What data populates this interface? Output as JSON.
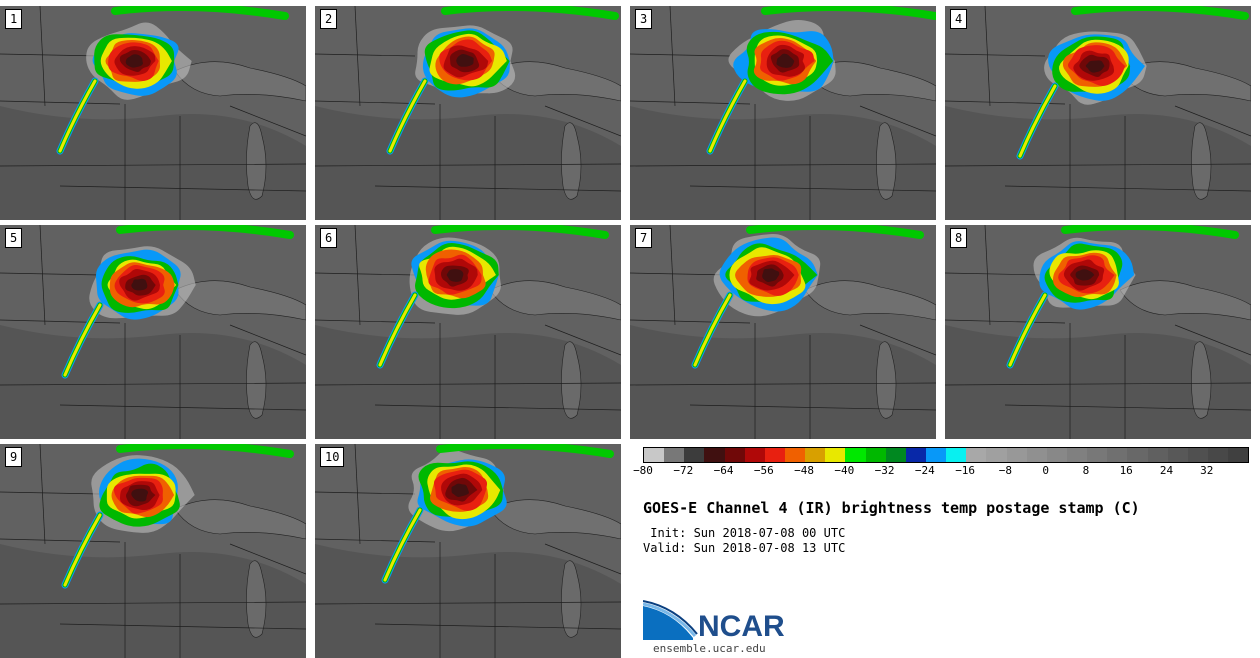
{
  "panels": [
    {
      "label": "1"
    },
    {
      "label": "2"
    },
    {
      "label": "3"
    },
    {
      "label": "4"
    },
    {
      "label": "5"
    },
    {
      "label": "6"
    },
    {
      "label": "7"
    },
    {
      "label": "8"
    },
    {
      "label": "9"
    },
    {
      "label": "10"
    }
  ],
  "colorbar": {
    "colors": [
      "#c8c8c8",
      "#787878",
      "#3c3c3c",
      "#401010",
      "#700808",
      "#b00808",
      "#e82010",
      "#f06000",
      "#d8a000",
      "#e8e800",
      "#00e800",
      "#00b800",
      "#008820",
      "#0828a8",
      "#0898f8",
      "#08f0f0",
      "#a8a8a8",
      "#a0a0a0",
      "#989898",
      "#909090",
      "#888888",
      "#808080",
      "#787878",
      "#707070",
      "#686868",
      "#606060",
      "#585858",
      "#505050",
      "#484848",
      "#404040"
    ],
    "ticks": [
      "−80",
      "−72",
      "−64",
      "−56",
      "−48",
      "−40",
      "−32",
      "−24",
      "−16",
      "−8",
      "0",
      "8",
      "16",
      "24",
      "32"
    ]
  },
  "title": "GOES-E Channel 4 (IR) brightness temp postage stamp (C)",
  "init": " Init: Sun 2018-07-08 00 UTC",
  "valid": "Valid: Sun 2018-07-08 13 UTC",
  "logo": {
    "name": "NCAR",
    "url": "ensemble.ucar.edu"
  }
}
